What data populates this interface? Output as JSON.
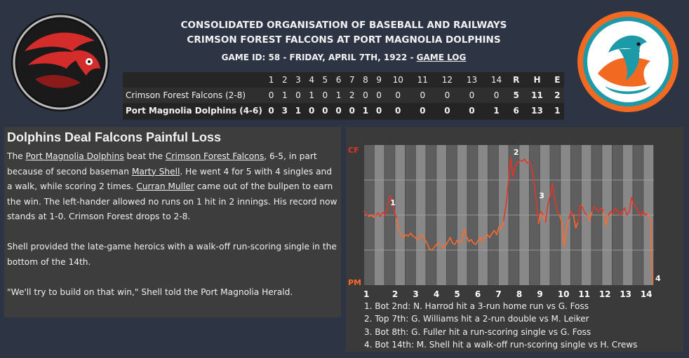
{
  "header": {
    "league": "CONSOLIDATED ORGANISATION OF BASEBALL AND RAILWAYS",
    "matchup": "CRIMSON FOREST FALCONS AT PORT MAGNOLIA DOLPHINS",
    "game_info": "GAME ID: 58 - FRIDAY, APRIL 7TH, 1922 - ",
    "game_log_link": "GAME LOG"
  },
  "logos": {
    "away": "falcon-logo",
    "home": "dolphin-logo",
    "away_color": "#d42b2b",
    "home_color": "#f26a22"
  },
  "linescore": {
    "headers": [
      "1",
      "2",
      "3",
      "4",
      "5",
      "6",
      "7",
      "8",
      "9",
      "10",
      "11",
      "12",
      "13",
      "14",
      "R",
      "H",
      "E"
    ],
    "teams": [
      {
        "name": "Crimson Forest Falcons (2-8)",
        "cells": [
          "0",
          "1",
          "0",
          "1",
          "0",
          "1",
          "2",
          "0",
          "0",
          "0",
          "0",
          "0",
          "0",
          "0",
          "5",
          "11",
          "2"
        ]
      },
      {
        "name": "Port Magnolia Dolphins (4-6)",
        "cells": [
          "0",
          "3",
          "1",
          "0",
          "0",
          "0",
          "0",
          "1",
          "0",
          "0",
          "0",
          "0",
          "0",
          "1",
          "6",
          "13",
          "1"
        ]
      }
    ]
  },
  "story": {
    "title": "Dolphins Deal Falcons Painful Loss",
    "p1": {
      "t1": "The ",
      "l1": "Port Magnolia Dolphins",
      "t2": " beat the ",
      "l2": "Crimson Forest Falcons",
      "t3": ", 6-5, in part because of second baseman ",
      "l3": "Marty Shell",
      "t4": ". He went 4 for 5 with 4 singles and a walk, while scoring 2 times. ",
      "l4": "Curran Muller",
      "t5": " came out of the bullpen to earn the win. The left-hander allowed no runs on 1 hit in 2 innings. His record now stands at 1-0. Crimson Forest drops to 2-8."
    },
    "p2": "Shell provided the late-game heroics with a walk-off run-scoring single in the bottom of the 14th.",
    "p3": "\"We'll try to build on that win,\" Shell told the Port Magnolia Herald."
  },
  "chart_data": {
    "type": "line",
    "title": "",
    "y_top_label": "CF",
    "y_bottom_label": "PM",
    "ylim": [
      -1,
      1
    ],
    "x_ticks": [
      "1",
      "2",
      "3",
      "4",
      "5",
      "6",
      "7",
      "8",
      "9",
      "10",
      "11",
      "12",
      "13",
      "14"
    ],
    "series": [
      {
        "values": [
          0.05,
          0.02,
          -0.02,
          0.0,
          -0.03,
          -0.01,
          0.03,
          -0.02,
          0.04,
          0.0,
          0.1,
          0.28,
          0.22,
          0.05,
          -0.05,
          -0.22,
          -0.3,
          -0.32,
          -0.28,
          -0.3,
          -0.26,
          -0.3,
          -0.32,
          -0.36,
          -0.3,
          -0.28,
          -0.34,
          -0.4,
          -0.48,
          -0.5,
          -0.47,
          -0.42,
          -0.4,
          -0.42,
          -0.46,
          -0.44,
          -0.38,
          -0.32,
          -0.4,
          -0.42,
          -0.36,
          -0.4,
          -0.36,
          -0.2,
          -0.3,
          -0.38,
          -0.35,
          -0.4,
          -0.42,
          -0.36,
          -0.32,
          -0.38,
          -0.3,
          -0.28,
          -0.32,
          -0.26,
          -0.22,
          -0.28,
          -0.16,
          -0.2,
          -0.08,
          0.15,
          0.45,
          0.82,
          0.55,
          0.7,
          0.75,
          0.78,
          0.77,
          0.8,
          0.74,
          0.76,
          0.7,
          0.5,
          0.2,
          -0.12,
          0.05,
          0.0,
          -0.1,
          0.15,
          0.28,
          0.45,
          0.2,
          0.05,
          0.0,
          -0.1,
          -0.45,
          -0.2,
          -0.05,
          0.05,
          0.0,
          -0.18,
          -0.1,
          0.15,
          0.1,
          0.02,
          0.0,
          -0.08,
          0.05,
          0.12,
          0.08,
          0.05,
          0.1,
          0.05,
          -0.15,
          0.0,
          0.05,
          0.02,
          0.1,
          0.05,
          0.0,
          0.05,
          0.1,
          0.0,
          0.05,
          0.25,
          0.15,
          0.1,
          0.05,
          0.0,
          0.05,
          0.0,
          0.02,
          -0.05,
          -0.98
        ]
      }
    ],
    "line_colors": [
      "#ff6a2a",
      "#e53528"
    ],
    "annotations": [
      {
        "label": "1",
        "index": 10
      },
      {
        "label": "2",
        "index": 63
      },
      {
        "label": "3",
        "index": 74
      },
      {
        "label": "4",
        "index": 124
      }
    ],
    "events": [
      "1. Bot 2nd: N. Harrod hit a 3-run home run vs G. Foss",
      "2. Top 7th: G. Williams hit a 2-run double vs M. Leiker",
      "3. Bot 8th: G. Fuller hit a run-scoring single vs G. Foss",
      "4. Bot 14th: M. Shell hit a walk-off run-scoring single vs H. Crews"
    ]
  }
}
